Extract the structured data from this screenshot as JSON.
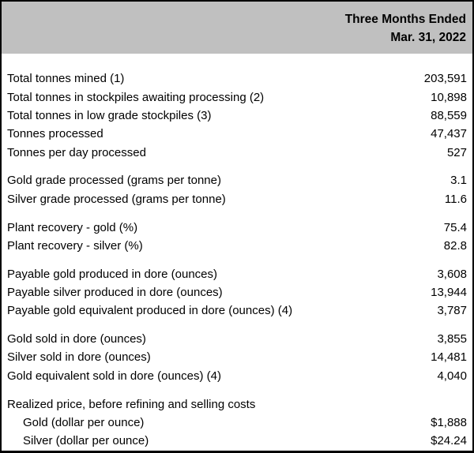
{
  "header": {
    "period_title": "Three Months Ended",
    "period_date": "Mar. 31, 2022"
  },
  "colors": {
    "header_bg": "#c0c0c0",
    "border": "#000000",
    "text": "#000000",
    "body_bg": "#ffffff"
  },
  "table": {
    "rows": [
      {
        "type": "spacer-top"
      },
      {
        "type": "data",
        "label": "Total tonnes mined (1)",
        "value": "203,591",
        "indent": false
      },
      {
        "type": "data",
        "label": "Total tonnes in stockpiles awaiting processing (2)",
        "value": "10,898",
        "indent": false
      },
      {
        "type": "data",
        "label": "Total tonnes in low grade stockpiles (3)",
        "value": "88,559",
        "indent": false
      },
      {
        "type": "data",
        "label": "Tonnes processed",
        "value": "47,437",
        "indent": false
      },
      {
        "type": "data",
        "label": "Tonnes per day processed",
        "value": "527",
        "indent": false
      },
      {
        "type": "blank"
      },
      {
        "type": "data",
        "label": "Gold grade processed (grams per tonne)",
        "value": "3.1",
        "indent": false
      },
      {
        "type": "data",
        "label": "Silver grade processed (grams per tonne)",
        "value": "11.6",
        "indent": false
      },
      {
        "type": "blank"
      },
      {
        "type": "data",
        "label": "Plant recovery - gold (%)",
        "value": "75.4",
        "indent": false
      },
      {
        "type": "data",
        "label": "Plant recovery - silver (%)",
        "value": "82.8",
        "indent": false
      },
      {
        "type": "blank"
      },
      {
        "type": "data",
        "label": "Payable gold produced in dore (ounces)",
        "value": "3,608",
        "indent": false
      },
      {
        "type": "data",
        "label": "Payable silver produced in dore (ounces)",
        "value": "13,944",
        "indent": false
      },
      {
        "type": "data",
        "label": "Payable gold equivalent produced in dore (ounces) (4)",
        "value": "3,787",
        "indent": false
      },
      {
        "type": "blank"
      },
      {
        "type": "data",
        "label": "Gold sold in dore (ounces)",
        "value": "3,855",
        "indent": false
      },
      {
        "type": "data",
        "label": "Silver sold in dore (ounces)",
        "value": "14,481",
        "indent": false
      },
      {
        "type": "data",
        "label": "Gold equivalent sold in dore (ounces) (4)",
        "value": "4,040",
        "indent": false
      },
      {
        "type": "blank"
      },
      {
        "type": "data",
        "label": "Realized price, before refining and selling costs",
        "value": "",
        "indent": false
      },
      {
        "type": "data",
        "label": "Gold (dollar per ounce)",
        "value": "$1,888",
        "indent": true
      },
      {
        "type": "data",
        "label": "Silver (dollar per ounce)",
        "value": "$24.24",
        "indent": true
      }
    ]
  }
}
